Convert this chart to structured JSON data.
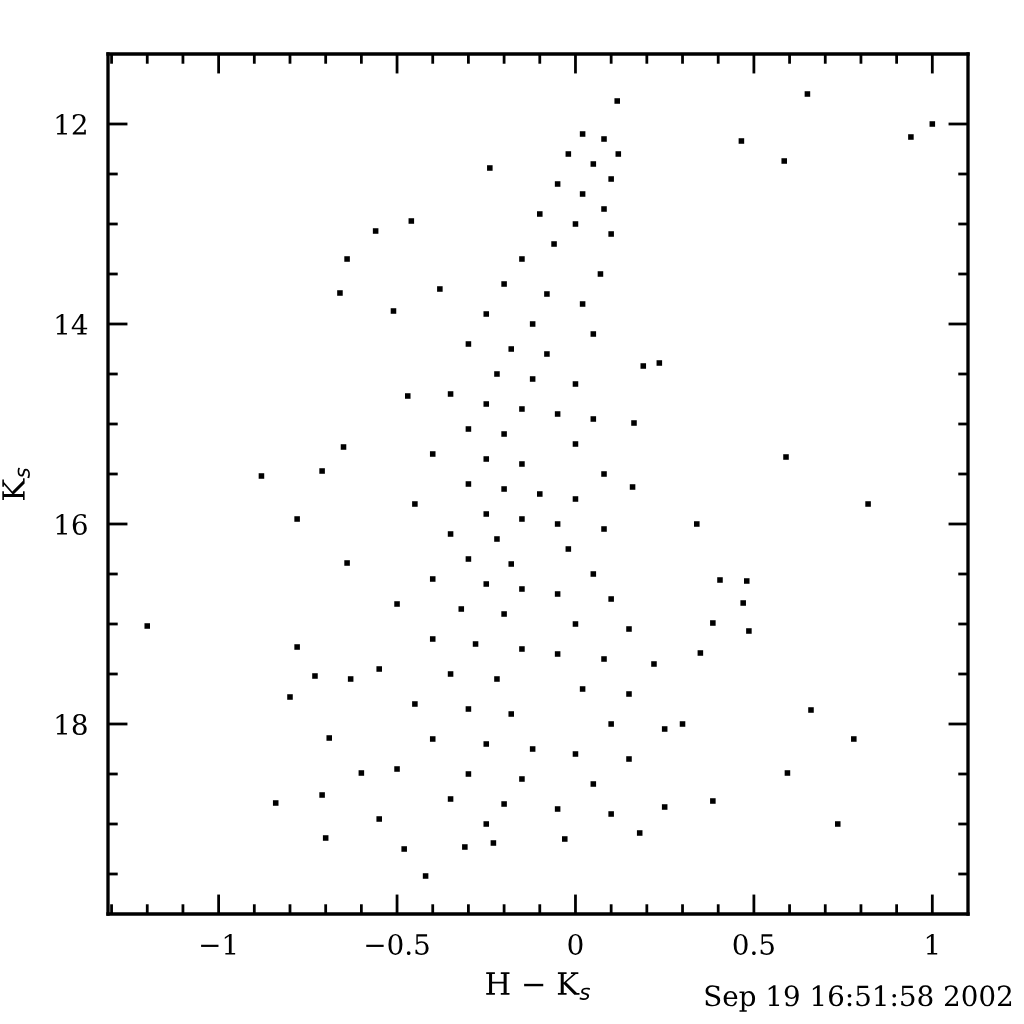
{
  "chart_data": {
    "type": "scatter",
    "xlabel": "H − K$_{s}$",
    "ylabel": "K$_{s}$",
    "annotations": [
      "Sep 19 16:51:58 2002"
    ],
    "xlim": [
      -1.31,
      1.1
    ],
    "ylim": [
      19.9,
      11.3
    ],
    "xticks": [
      {
        "value": -1.3,
        "label": null
      },
      {
        "value": -1.2,
        "label": null
      },
      {
        "value": -1.1,
        "label": null
      },
      {
        "value": -1,
        "label": "−1"
      },
      {
        "value": -0.9,
        "label": null
      },
      {
        "value": -0.8,
        "label": null
      },
      {
        "value": -0.7,
        "label": null
      },
      {
        "value": -0.6,
        "label": null
      },
      {
        "value": -0.5,
        "label": "−0.5"
      },
      {
        "value": -0.4,
        "label": null
      },
      {
        "value": -0.3,
        "label": null
      },
      {
        "value": -0.2,
        "label": null
      },
      {
        "value": -0.1,
        "label": null
      },
      0,
      {
        "value": 0.1,
        "label": null
      },
      {
        "value": 0.2,
        "label": null
      },
      {
        "value": 0.3,
        "label": null
      },
      {
        "value": 0.4,
        "label": null
      },
      0.5,
      {
        "value": 0.6,
        "label": null
      },
      {
        "value": 0.7,
        "label": null
      },
      {
        "value": 0.8,
        "label": null
      },
      {
        "value": 0.9,
        "label": null
      },
      1
    ],
    "yticks": [
      12,
      {
        "value": 12.5,
        "label": null
      },
      {
        "value": 13,
        "label": null
      },
      {
        "value": 13.5,
        "label": null
      },
      14,
      {
        "value": 14.5,
        "label": null
      },
      {
        "value": 15,
        "label": null
      },
      {
        "value": 15.5,
        "label": null
      },
      16,
      {
        "value": 16.5,
        "label": null
      },
      {
        "value": 17,
        "label": null
      },
      {
        "value": 17.5,
        "label": null
      },
      18,
      {
        "value": 18.5,
        "label": null
      },
      {
        "value": 19,
        "label": null
      },
      {
        "value": 19.5,
        "label": null
      }
    ],
    "marker": "square",
    "series": [
      {
        "color": "#000000",
        "x": [
          1.0,
          0.465,
          0.65,
          0.585,
          0.94,
          0.59,
          0.82,
          0.235,
          0.19,
          0.117,
          0.164,
          0.16,
          0.34,
          0.48,
          0.47,
          0.486,
          0.385,
          0.405,
          0.66,
          0.78,
          0.735,
          0.594,
          0.385,
          0.3,
          0.35,
          0.18,
          0.25,
          -0.03,
          -1.2,
          -0.78,
          -0.84,
          -0.8,
          -0.78,
          -0.7,
          -0.71,
          -0.69,
          -0.73,
          -0.63,
          -0.48,
          -0.42,
          -0.31,
          -0.23,
          -0.55,
          -0.6,
          -0.64,
          -0.88,
          -0.71,
          -0.56,
          -0.46,
          -0.64,
          -0.51,
          -0.24,
          -0.47,
          -0.65,
          -0.66,
          -0.38,
          0.02,
          0.08,
          0.12,
          -0.02,
          0.05,
          0.1,
          -0.05,
          0.02,
          0.08,
          -0.1,
          0.0,
          0.1,
          -0.06,
          -0.15,
          0.07,
          -0.2,
          -0.08,
          0.02,
          -0.25,
          -0.12,
          0.05,
          -0.3,
          -0.18,
          -0.08,
          -0.22,
          -0.12,
          0.0,
          -0.35,
          -0.25,
          -0.15,
          -0.05,
          0.05,
          -0.3,
          -0.2,
          0.0,
          -0.4,
          -0.25,
          -0.15,
          0.08,
          -0.3,
          -0.2,
          -0.1,
          0.0,
          -0.45,
          -0.25,
          -0.15,
          -0.05,
          0.08,
          -0.35,
          -0.22,
          -0.02,
          -0.3,
          -0.18,
          0.05,
          -0.4,
          -0.25,
          -0.15,
          -0.05,
          0.1,
          -0.5,
          -0.32,
          -0.2,
          0.0,
          0.15,
          -0.4,
          -0.28,
          -0.15,
          -0.05,
          0.08,
          0.22,
          -0.55,
          -0.35,
          -0.22,
          0.02,
          0.15,
          -0.45,
          -0.3,
          -0.18,
          0.1,
          0.25,
          -0.4,
          -0.25,
          -0.12,
          0.0,
          0.15,
          -0.5,
          -0.3,
          -0.15,
          0.05,
          -0.35,
          -0.2,
          -0.05,
          0.1,
          -0.25
        ],
        "values": [
          12.0,
          12.17,
          11.7,
          12.37,
          12.13,
          15.33,
          15.8,
          14.39,
          14.42,
          11.77,
          14.99,
          15.63,
          16.0,
          16.57,
          16.79,
          17.07,
          16.99,
          16.56,
          17.86,
          18.15,
          19.0,
          18.49,
          18.77,
          18.0,
          17.29,
          19.09,
          18.83,
          19.15,
          17.02,
          15.95,
          18.79,
          17.73,
          17.23,
          19.14,
          18.71,
          18.14,
          17.52,
          17.55,
          19.25,
          19.52,
          19.23,
          19.19,
          18.95,
          18.49,
          16.39,
          15.52,
          15.47,
          13.07,
          12.97,
          13.35,
          13.87,
          12.44,
          14.72,
          15.23,
          13.69,
          13.65,
          12.1,
          12.15,
          12.3,
          12.3,
          12.4,
          12.55,
          12.6,
          12.7,
          12.85,
          12.9,
          13.0,
          13.1,
          13.2,
          13.35,
          13.5,
          13.6,
          13.7,
          13.8,
          13.9,
          14.0,
          14.1,
          14.2,
          14.25,
          14.3,
          14.5,
          14.55,
          14.6,
          14.7,
          14.8,
          14.85,
          14.9,
          14.95,
          15.05,
          15.1,
          15.2,
          15.3,
          15.35,
          15.4,
          15.5,
          15.6,
          15.65,
          15.7,
          15.75,
          15.8,
          15.9,
          15.95,
          16.0,
          16.05,
          16.1,
          16.15,
          16.25,
          16.35,
          16.4,
          16.5,
          16.55,
          16.6,
          16.65,
          16.7,
          16.75,
          16.8,
          16.85,
          16.9,
          17.0,
          17.05,
          17.15,
          17.2,
          17.25,
          17.3,
          17.35,
          17.4,
          17.45,
          17.5,
          17.55,
          17.65,
          17.7,
          17.8,
          17.85,
          17.9,
          18.0,
          18.05,
          18.15,
          18.2,
          18.25,
          18.3,
          18.35,
          18.45,
          18.5,
          18.55,
          18.6,
          18.75,
          18.8,
          18.85,
          18.9,
          19.0
        ]
      }
    ]
  }
}
